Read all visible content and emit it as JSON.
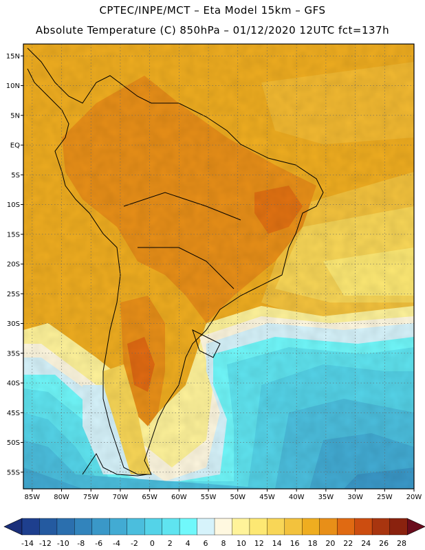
{
  "header": {
    "line1": "CPTEC/INPE/MCT –   Eta Model 15km – GFS",
    "line2": "Absolute Temperature (C) 850hPa – 01/12/2020 12UTC fct=137h"
  },
  "map": {
    "lat_labels": [
      "15N",
      "10N",
      "5N",
      "EQ",
      "5S",
      "10S",
      "15S",
      "20S",
      "25S",
      "30S",
      "35S",
      "40S",
      "45S",
      "50S",
      "55S"
    ],
    "lat_values": [
      15,
      10,
      5,
      0,
      -5,
      -10,
      -15,
      -20,
      -25,
      -30,
      -35,
      -40,
      -45,
      -50,
      -55
    ],
    "lon_labels": [
      "85W",
      "80W",
      "75W",
      "70W",
      "65W",
      "60W",
      "55W",
      "50W",
      "45W",
      "40W",
      "35W",
      "30W",
      "25W",
      "20W"
    ],
    "lon_values": [
      -85,
      -80,
      -75,
      -70,
      -65,
      -60,
      -55,
      -50,
      -45,
      -40,
      -35,
      -30,
      -25,
      -20
    ],
    "extent": {
      "lon_min": -86.5,
      "lon_max": -20,
      "lat_min": -57.8,
      "lat_max": 17
    }
  },
  "colorbar": {
    "labels": [
      "-14",
      "-12",
      "-10",
      "-8",
      "-6",
      "-4",
      "-2",
      "0",
      "2",
      "4",
      "6",
      "8",
      "10",
      "12",
      "14",
      "16",
      "18",
      "20",
      "22",
      "24",
      "26",
      "28"
    ],
    "colors": [
      "#1e3f8e",
      "#245aa0",
      "#2b6fae",
      "#3284bc",
      "#3a98c8",
      "#42abd3",
      "#4bbedd",
      "#54d3e8",
      "#5fe4f0",
      "#70f8fb",
      "#d6f3fb",
      "#fff8e0",
      "#fff39a",
      "#fde873",
      "#f8d657",
      "#f3c23d",
      "#efad20",
      "#e88f18",
      "#e06a12",
      "#cc4d10",
      "#a8350f",
      "#8a220e"
    ],
    "left_arrow_color": "#1a2f7a",
    "right_arrow_color": "#6a0c1c"
  }
}
